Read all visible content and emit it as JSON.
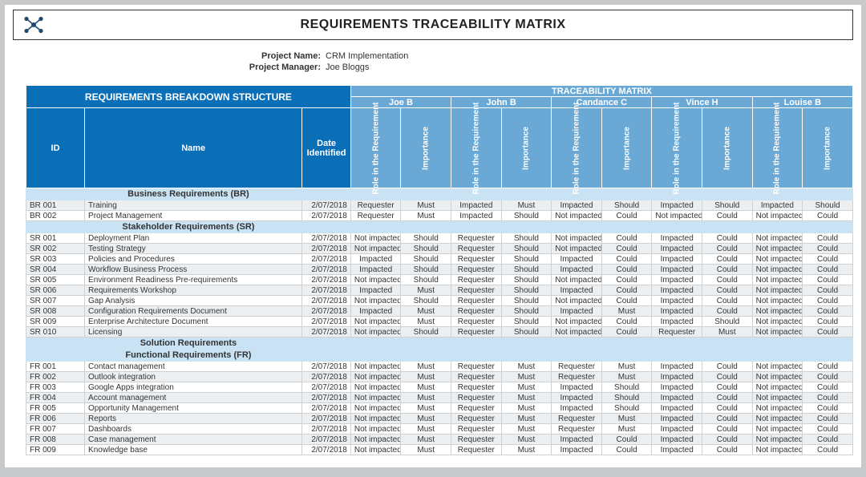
{
  "title": "REQUIREMENTS TRACEABILITY MATRIX",
  "meta": {
    "project_name_label": "Project Name:",
    "project_name_value": "CRM Implementation",
    "project_manager_label": "Project Manager:",
    "project_manager_value": "Joe Bloggs"
  },
  "bands": {
    "rbs": "REQUIREMENTS BREAKDOWN STRUCTURE",
    "tm": "TRACEABILITY MATRIX"
  },
  "people": [
    "Joe B",
    "John B",
    "Candance C",
    "Vince H",
    "Louise B"
  ],
  "col_headers": {
    "id": "ID",
    "name": "Name",
    "date": "Date Identified"
  },
  "vheaders": {
    "role": "Role in the Requirement",
    "importance": "Importance"
  },
  "colors": {
    "band_dark": "#0b6fb8",
    "band_mid": "#6aa9d6",
    "section_bg": "#c9e3f4",
    "row_alt": "#eceff1",
    "page_bg": "#c7c9cb"
  },
  "sections": [
    {
      "title": "Business Requirements (BR)",
      "rows": [
        {
          "id": "BR 001",
          "name": "Training",
          "date": "2/07/2018",
          "cells": [
            "Requester",
            "Must",
            "Impacted",
            "Must",
            "Impacted",
            "Should",
            "Impacted",
            "Should",
            "Impacted",
            "Should"
          ]
        },
        {
          "id": "BR 002",
          "name": "Project Management",
          "date": "2/07/2018",
          "cells": [
            "Requester",
            "Must",
            "Impacted",
            "Should",
            "Not impacted",
            "Could",
            "Not impacted",
            "Could",
            "Not impacted",
            "Could"
          ]
        }
      ]
    },
    {
      "title": "Stakeholder Requirements (SR)",
      "rows": [
        {
          "id": "SR 001",
          "name": "Deployment Plan",
          "date": "2/07/2018",
          "cells": [
            "Not impacted",
            "Should",
            "Requester",
            "Should",
            "Not impacted",
            "Could",
            "Impacted",
            "Could",
            "Not impacted",
            "Could"
          ]
        },
        {
          "id": "SR 002",
          "name": "Testing Strategy",
          "date": "2/07/2018",
          "cells": [
            "Not impacted",
            "Should",
            "Requester",
            "Should",
            "Not impacted",
            "Could",
            "Impacted",
            "Could",
            "Not impacted",
            "Could"
          ]
        },
        {
          "id": "SR 003",
          "name": "Policies and Procedures",
          "date": "2/07/2018",
          "cells": [
            "Impacted",
            "Should",
            "Requester",
            "Should",
            "Impacted",
            "Could",
            "Impacted",
            "Could",
            "Not impacted",
            "Could"
          ]
        },
        {
          "id": "SR 004",
          "name": "Workflow Business Process",
          "date": "2/07/2018",
          "cells": [
            "Impacted",
            "Should",
            "Requester",
            "Should",
            "Impacted",
            "Could",
            "Impacted",
            "Could",
            "Not impacted",
            "Could"
          ]
        },
        {
          "id": "SR 005",
          "name": "Environment Readiness Pre-requirements",
          "date": "2/07/2018",
          "cells": [
            "Not impacted",
            "Should",
            "Requester",
            "Should",
            "Not impacted",
            "Could",
            "Impacted",
            "Could",
            "Not impacted",
            "Could"
          ]
        },
        {
          "id": "SR 006",
          "name": "Requirements Workshop",
          "date": "2/07/2018",
          "cells": [
            "Impacted",
            "Must",
            "Requester",
            "Should",
            "Impacted",
            "Could",
            "Impacted",
            "Could",
            "Not impacted",
            "Could"
          ]
        },
        {
          "id": "SR 007",
          "name": "Gap Analysis",
          "date": "2/07/2018",
          "cells": [
            "Not impacted",
            "Should",
            "Requester",
            "Should",
            "Not impacted",
            "Could",
            "Impacted",
            "Could",
            "Not impacted",
            "Could"
          ]
        },
        {
          "id": "SR 008",
          "name": "Configuration Requirements Document",
          "date": "2/07/2018",
          "cells": [
            "Impacted",
            "Must",
            "Requester",
            "Should",
            "Impacted",
            "Must",
            "Impacted",
            "Could",
            "Not impacted",
            "Could"
          ]
        },
        {
          "id": "SR 009",
          "name": "Enterprise Architecture Document",
          "date": "2/07/2018",
          "cells": [
            "Not impacted",
            "Must",
            "Requester",
            "Should",
            "Not impacted",
            "Could",
            "Impacted",
            "Should",
            "Not impacted",
            "Could"
          ]
        },
        {
          "id": "SR 010",
          "name": "Licensing",
          "date": "2/07/2018",
          "cells": [
            "Not impacted",
            "Should",
            "Requester",
            "Should",
            "Not impacted",
            "Could",
            "Requester",
            "Must",
            "Not impacted",
            "Could"
          ]
        }
      ]
    },
    {
      "title": "Solution Requirements",
      "subtitle": "Functional Requirements (FR)",
      "rows": [
        {
          "id": "FR 001",
          "name": "Contact management",
          "date": "2/07/2018",
          "cells": [
            "Not impacted",
            "Must",
            "Requester",
            "Must",
            "Requester",
            "Must",
            "Impacted",
            "Could",
            "Not impacted",
            "Could"
          ]
        },
        {
          "id": "FR 002",
          "name": "Outlook integration",
          "date": "2/07/2018",
          "cells": [
            "Not impacted",
            "Must",
            "Requester",
            "Must",
            "Requester",
            "Must",
            "Impacted",
            "Could",
            "Not impacted",
            "Could"
          ]
        },
        {
          "id": "FR 003",
          "name": "Google Apps integration",
          "date": "2/07/2018",
          "cells": [
            "Not impacted",
            "Must",
            "Requester",
            "Must",
            "Impacted",
            "Should",
            "Impacted",
            "Could",
            "Not impacted",
            "Could"
          ]
        },
        {
          "id": "FR 004",
          "name": "Account management",
          "date": "2/07/2018",
          "cells": [
            "Not impacted",
            "Must",
            "Requester",
            "Must",
            "Impacted",
            "Should",
            "Impacted",
            "Could",
            "Not impacted",
            "Could"
          ]
        },
        {
          "id": "FR 005",
          "name": "Opportunity Management",
          "date": "2/07/2018",
          "cells": [
            "Not impacted",
            "Must",
            "Requester",
            "Must",
            "Impacted",
            "Should",
            "Impacted",
            "Could",
            "Not impacted",
            "Could"
          ]
        },
        {
          "id": "FR 006",
          "name": "Reports",
          "date": "2/07/2018",
          "cells": [
            "Not impacted",
            "Must",
            "Requester",
            "Must",
            "Requester",
            "Must",
            "Impacted",
            "Could",
            "Not impacted",
            "Could"
          ]
        },
        {
          "id": "FR 007",
          "name": "Dashboards",
          "date": "2/07/2018",
          "cells": [
            "Not impacted",
            "Must",
            "Requester",
            "Must",
            "Requester",
            "Must",
            "Impacted",
            "Could",
            "Not impacted",
            "Could"
          ]
        },
        {
          "id": "FR 008",
          "name": "Case management",
          "date": "2/07/2018",
          "cells": [
            "Not impacted",
            "Must",
            "Requester",
            "Must",
            "Impacted",
            "Could",
            "Impacted",
            "Could",
            "Not impacted",
            "Could"
          ]
        },
        {
          "id": "FR 009",
          "name": "Knowledge base",
          "date": "2/07/2018",
          "cells": [
            "Not impacted",
            "Must",
            "Requester",
            "Must",
            "Impacted",
            "Could",
            "Impacted",
            "Could",
            "Not impacted",
            "Could"
          ]
        }
      ]
    }
  ]
}
